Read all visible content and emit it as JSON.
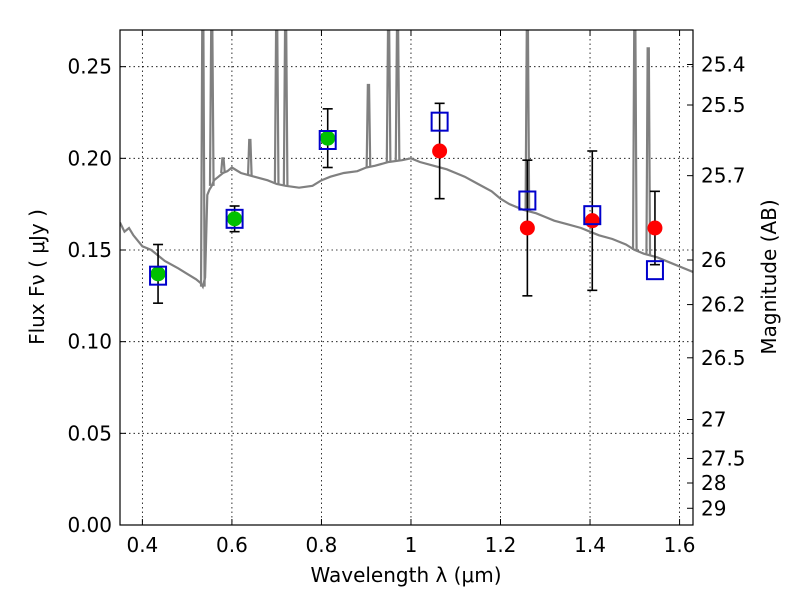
{
  "chart_data": {
    "type": "scatter",
    "xlabel": "Wavelength  λ (μm)",
    "ylabel": "Flux  Fν  ( μJy )",
    "y2label": "Magnitude (AB)",
    "xlim": [
      0.35,
      1.63
    ],
    "ylim": [
      0.0,
      0.27
    ],
    "grid": true,
    "x_ticks": [
      {
        "value": 0.4,
        "label": "0.4"
      },
      {
        "value": 0.6,
        "label": "0.6"
      },
      {
        "value": 0.8,
        "label": "0.8"
      },
      {
        "value": 1.0,
        "label": "1"
      },
      {
        "value": 1.2,
        "label": "1.2"
      },
      {
        "value": 1.4,
        "label": "1.4"
      },
      {
        "value": 1.6,
        "label": "1.6"
      }
    ],
    "y_ticks": [
      {
        "value": 0.0,
        "label": "0.00"
      },
      {
        "value": 0.05,
        "label": "0.05"
      },
      {
        "value": 0.1,
        "label": "0.10"
      },
      {
        "value": 0.15,
        "label": "0.15"
      },
      {
        "value": 0.2,
        "label": "0.20"
      },
      {
        "value": 0.25,
        "label": "0.25"
      }
    ],
    "y2_ticks": [
      {
        "value": 25.4,
        "label": "25.4"
      },
      {
        "value": 25.5,
        "label": "25.5"
      },
      {
        "value": 25.7,
        "label": "25.7"
      },
      {
        "value": 26.0,
        "label": "26"
      },
      {
        "value": 26.2,
        "label": "26.2"
      },
      {
        "value": 26.5,
        "label": "26.5"
      },
      {
        "value": 27.0,
        "label": "27"
      },
      {
        "value": 27.5,
        "label": "27.5"
      },
      {
        "value": 28.0,
        "label": "28"
      },
      {
        "value": 29.0,
        "label": "29"
      }
    ],
    "colors": {
      "model": "#808080",
      "optical": "#00c000",
      "infrared": "#ff0000",
      "model_flux": "#0000cc",
      "errorbar": "#000000",
      "grid": "#000000"
    },
    "model_spectrum": {
      "x": [
        0.35,
        0.36,
        0.37,
        0.38,
        0.39,
        0.4,
        0.42,
        0.45,
        0.48,
        0.5,
        0.52,
        0.53,
        0.535,
        0.54,
        0.545,
        0.55,
        0.555,
        0.56,
        0.57,
        0.58,
        0.59,
        0.6,
        0.62,
        0.65,
        0.68,
        0.7,
        0.72,
        0.75,
        0.78,
        0.8,
        0.82,
        0.85,
        0.88,
        0.9,
        0.92,
        0.95,
        0.98,
        1.0,
        1.02,
        1.05,
        1.08,
        1.1,
        1.12,
        1.15,
        1.18,
        1.2,
        1.22,
        1.25,
        1.28,
        1.3,
        1.32,
        1.35,
        1.38,
        1.4,
        1.42,
        1.45,
        1.48,
        1.5,
        1.52,
        1.55,
        1.58,
        1.6,
        1.63
      ],
      "y": [
        0.165,
        0.16,
        0.162,
        0.158,
        0.155,
        0.152,
        0.15,
        0.144,
        0.14,
        0.137,
        0.134,
        0.132,
        0.13,
        0.135,
        0.18,
        0.183,
        0.185,
        0.188,
        0.19,
        0.192,
        0.193,
        0.195,
        0.192,
        0.19,
        0.188,
        0.186,
        0.185,
        0.184,
        0.185,
        0.188,
        0.19,
        0.192,
        0.193,
        0.195,
        0.196,
        0.198,
        0.199,
        0.2,
        0.198,
        0.196,
        0.194,
        0.192,
        0.19,
        0.186,
        0.182,
        0.178,
        0.175,
        0.172,
        0.17,
        0.168,
        0.166,
        0.164,
        0.162,
        0.16,
        0.158,
        0.156,
        0.153,
        0.15,
        0.148,
        0.146,
        0.143,
        0.141,
        0.138
      ]
    },
    "emission_lines": [
      {
        "x": 0.535,
        "top": 0.27
      },
      {
        "x": 0.555,
        "top": 0.27
      },
      {
        "x": 0.58,
        "top": 0.2
      },
      {
        "x": 0.64,
        "top": 0.21
      },
      {
        "x": 0.7,
        "top": 0.27
      },
      {
        "x": 0.72,
        "top": 0.27
      },
      {
        "x": 0.905,
        "top": 0.24
      },
      {
        "x": 0.95,
        "top": 0.27
      },
      {
        "x": 0.97,
        "top": 0.27
      },
      {
        "x": 1.26,
        "top": 0.27
      },
      {
        "x": 1.5,
        "top": 0.27
      },
      {
        "x": 1.53,
        "top": 0.26
      }
    ],
    "series": [
      {
        "name": "",
        "color": "#00c000",
        "points": [
          {
            "x": 0.435,
            "y": 0.137,
            "yerr": [
              0.016,
              0.016
            ]
          },
          {
            "x": 0.606,
            "y": 0.167,
            "yerr": [
              0.007,
              0.007
            ]
          },
          {
            "x": 0.814,
            "y": 0.211,
            "yerr": [
              0.016,
              0.016
            ]
          }
        ]
      },
      {
        "name": "",
        "color": "#ff0000",
        "points": [
          {
            "x": 1.064,
            "y": 0.204,
            "yerr": [
              0.026,
              0.026
            ]
          },
          {
            "x": 1.26,
            "y": 0.162,
            "yerr": [
              0.037,
              0.037
            ]
          },
          {
            "x": 1.405,
            "y": 0.166,
            "yerr": [
              0.038,
              0.038
            ]
          },
          {
            "x": 1.545,
            "y": 0.162,
            "yerr": [
              0.02,
              0.02
            ]
          }
        ]
      }
    ],
    "model_flux_points": [
      {
        "x": 0.435,
        "y": 0.136
      },
      {
        "x": 0.606,
        "y": 0.167
      },
      {
        "x": 0.814,
        "y": 0.21
      },
      {
        "x": 1.064,
        "y": 0.22
      },
      {
        "x": 1.26,
        "y": 0.177
      },
      {
        "x": 1.405,
        "y": 0.169
      },
      {
        "x": 1.545,
        "y": 0.139
      }
    ]
  }
}
